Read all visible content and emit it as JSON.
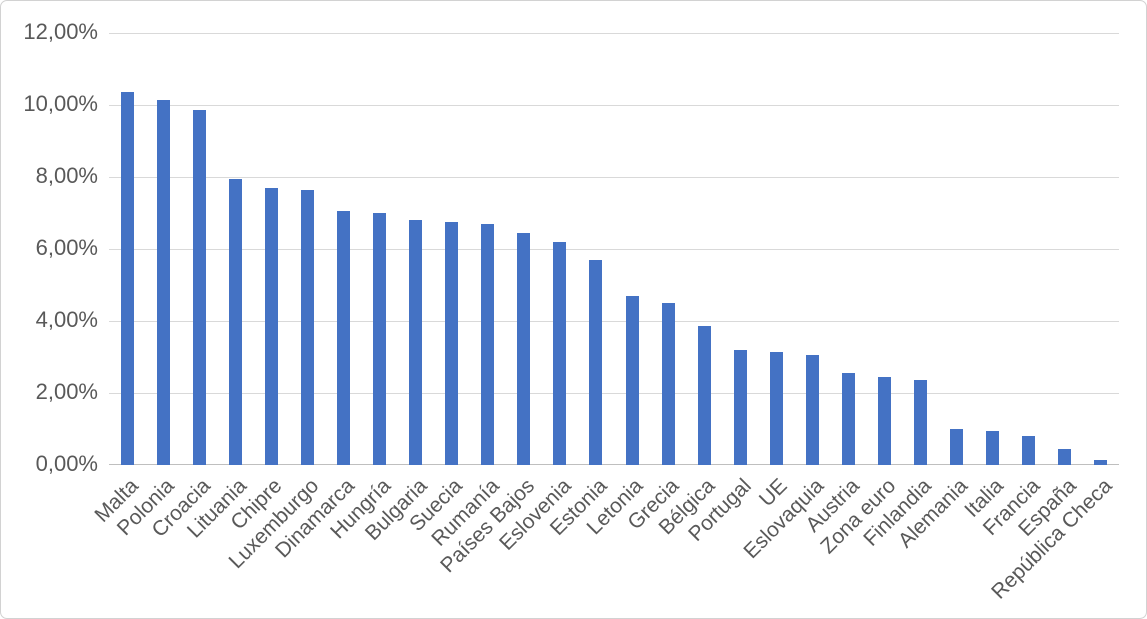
{
  "window": {
    "background_color": "#FFFFFF",
    "border_color": "#D2D2D2"
  },
  "chart": {
    "bar_color": "#4472C4",
    "gridline_color": "#D9D9D9",
    "axis_line_color": "#BFBFBF",
    "label_color": "#595959"
  },
  "chart_data": {
    "type": "bar",
    "title": "",
    "xlabel": "",
    "ylabel": "",
    "categories": [
      "Malta",
      "Polonia",
      "Croacia",
      "Lituania",
      "Chipre",
      "Luxemburgo",
      "Dinamarca",
      "Hungría",
      "Bulgaria",
      "Suecia",
      "Rumanía",
      "Países Bajos",
      "Eslovenia",
      "Estonia",
      "Letonia",
      "Grecia",
      "Bélgica",
      "Portugal",
      "UE",
      "Eslovaquia",
      "Austria",
      "Zona euro",
      "Finlandia",
      "Alemania",
      "Italia",
      "Francia",
      "España",
      "República Checa"
    ],
    "values": [
      10.35,
      10.15,
      9.85,
      7.95,
      7.7,
      7.65,
      7.05,
      7.0,
      6.8,
      6.75,
      6.7,
      6.45,
      6.2,
      5.7,
      4.7,
      4.5,
      3.85,
      3.2,
      3.15,
      3.05,
      2.55,
      2.45,
      2.35,
      1.0,
      0.95,
      0.8,
      0.45,
      0.15
    ],
    "ylim": [
      0,
      12
    ],
    "y_tick_step": 2,
    "y_tick_labels": [
      "0,00%",
      "2,00%",
      "4,00%",
      "6,00%",
      "8,00%",
      "10,00%",
      "12,00%"
    ],
    "grid": true,
    "legend": "none",
    "x_label_rotation_deg": 45
  }
}
